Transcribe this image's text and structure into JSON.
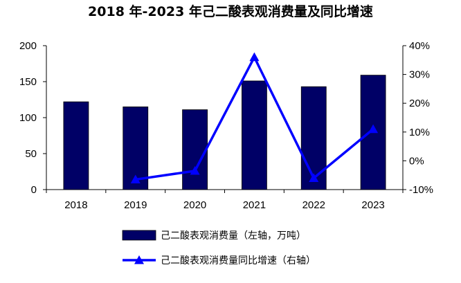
{
  "chart_data": {
    "type": "bar",
    "title": "2018 年-2023 年己二酸表观消费量及同比增速",
    "categories": [
      "2018",
      "2019",
      "2020",
      "2021",
      "2022",
      "2023"
    ],
    "series": [
      {
        "name": "己二酸表观消费量（左轴，万吨）",
        "type": "bar",
        "axis": "left",
        "color": "#000066",
        "values": [
          122,
          115,
          111,
          151,
          143,
          159
        ]
      },
      {
        "name": "己二酸表观消费量同比增速（右轴）",
        "type": "line",
        "axis": "right",
        "color": "#0000ff",
        "marker": "triangle",
        "values": [
          null,
          -6.5,
          -3.5,
          36.0,
          -6.0,
          11.0
        ]
      }
    ],
    "y_left": {
      "range": [
        0,
        200
      ],
      "ticks": [
        0,
        50,
        100,
        150,
        200
      ],
      "tick_labels": [
        "0",
        "50",
        "100",
        "150",
        "200"
      ]
    },
    "y_right": {
      "range": [
        -10,
        40
      ],
      "ticks": [
        -10,
        0,
        10,
        20,
        30,
        40
      ],
      "tick_labels": [
        "-10%",
        "0%",
        "10%",
        "20%",
        "30%",
        "40%"
      ]
    },
    "grid": false,
    "legend_position": "bottom"
  }
}
